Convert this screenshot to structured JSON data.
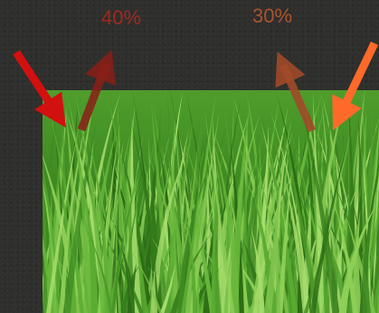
{
  "labels": {
    "left_percent": "40%",
    "right_percent": "30%"
  },
  "colors": {
    "background": "#2f2f2d",
    "left_incoming_arrow": "#d21010",
    "left_outgoing_arrow": "#8a1e18",
    "right_incoming_arrow": "#ff6a2a",
    "right_outgoing_arrow": "#a04a28",
    "left_label": "#9e2a22",
    "right_label": "#a9542e",
    "grass_light": "#7cc24a",
    "grass_dark": "#2a6a14"
  },
  "image": {
    "subject": "grass-photo"
  }
}
